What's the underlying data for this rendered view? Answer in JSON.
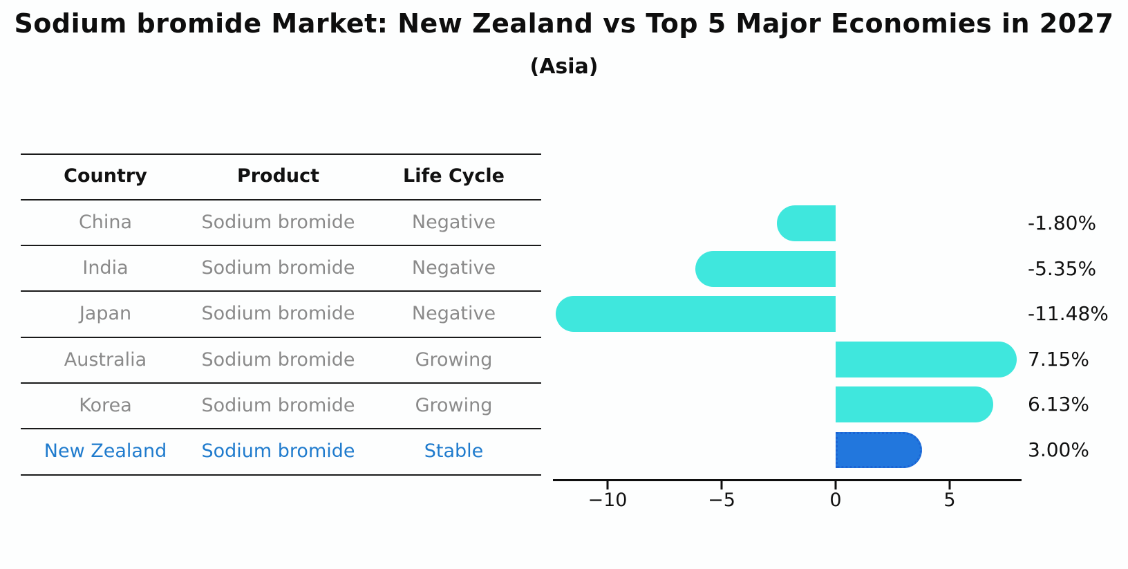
{
  "page": {
    "title": "Sodium bromide Market: New Zealand vs Top 5 Major Economies in 2027",
    "subtitle": "(Asia)"
  },
  "table": {
    "columns": [
      "Country",
      "Product",
      "Life Cycle"
    ],
    "rows": [
      {
        "country": "China",
        "product": "Sodium bromide",
        "life_cycle": "Negative"
      },
      {
        "country": "India",
        "product": "Sodium bromide",
        "life_cycle": "Negative"
      },
      {
        "country": "Japan",
        "product": "Sodium bromide",
        "life_cycle": "Negative"
      },
      {
        "country": "Australia",
        "product": "Sodium bromide",
        "life_cycle": "Growing"
      },
      {
        "country": "Korea",
        "product": "Sodium bromide",
        "life_cycle": "Growing"
      },
      {
        "country": "New Zealand",
        "product": "Sodium bromide",
        "life_cycle": "Stable"
      }
    ],
    "highlight_row_index": 5,
    "highlight_text_color": "#1f7bcd",
    "row_text_color": "#8a8a8a"
  },
  "chart_data": {
    "type": "bar",
    "orientation": "horizontal",
    "title": "Sodium bromide Market: New Zealand vs Top 5 Major Economies in 2027",
    "subtitle": "(Asia)",
    "categories": [
      "China",
      "India",
      "Japan",
      "Australia",
      "Korea",
      "New Zealand"
    ],
    "values": [
      -1.8,
      -5.35,
      -11.48,
      7.15,
      6.13,
      3.0
    ],
    "value_labels": [
      "-1.80%",
      "-5.35%",
      "-11.48%",
      "7.15%",
      "6.13%",
      "3.00%"
    ],
    "xticks": [
      -10,
      -5,
      0,
      5
    ],
    "xtick_labels": [
      "−10",
      "−5",
      "0",
      "5"
    ],
    "xlim": [
      -12.4,
      8.2
    ],
    "grid": false,
    "legend": false,
    "bar_color": "#3fe7dd",
    "highlight_index": 5,
    "highlight_bar_color": "#2277dd",
    "highlight_bar_border_color": "#1b64d4",
    "axis_color": "#0f0f0f"
  }
}
